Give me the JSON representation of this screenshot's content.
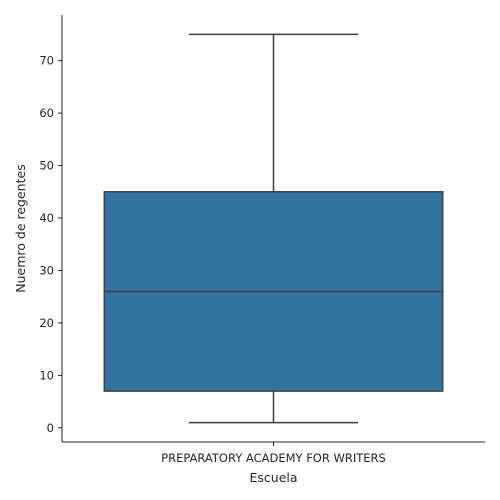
{
  "chart_data": {
    "type": "box",
    "title": "",
    "xlabel": "Escuela",
    "ylabel": "Nuemro de regentes",
    "categories": [
      "PREPARATORY ACADEMY FOR WRITERS"
    ],
    "boxes": [
      {
        "category": "PREPARATORY ACADEMY FOR WRITERS",
        "whisker_low": 1,
        "q1": 7,
        "median": 26,
        "q3": 45,
        "whisker_high": 75
      }
    ],
    "ylim": [
      -2.7,
      78.7
    ],
    "yticks": [
      0,
      10,
      20,
      30,
      40,
      50,
      60,
      70
    ],
    "grid": false,
    "box_color": "#3274a1",
    "line_color": "#3f3f3f"
  }
}
